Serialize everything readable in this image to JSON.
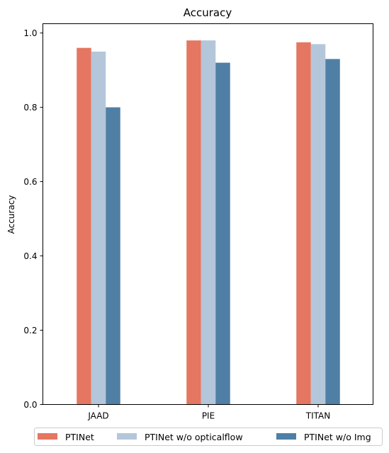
{
  "chart_data": {
    "type": "bar",
    "title": "Accuracy",
    "xlabel": "",
    "ylabel": "Accuracy",
    "categories": [
      "JAAD",
      "PIE",
      "TITAN"
    ],
    "series": [
      {
        "name": "PTINet",
        "values": [
          0.96,
          0.98,
          0.975
        ],
        "color": "#E57661"
      },
      {
        "name": "PTINet w/o opticalflow",
        "values": [
          0.95,
          0.98,
          0.97
        ],
        "color": "#B4C6DA"
      },
      {
        "name": "PTINet w/o Img",
        "values": [
          0.8,
          0.92,
          0.93
        ],
        "color": "#4F7FA5"
      }
    ],
    "ylim": [
      0,
      1.0
    ],
    "yticks": [
      "0.0",
      "0.2",
      "0.4",
      "0.6",
      "0.8",
      "1.0"
    ],
    "grid": false,
    "legend_position": "bottom-center"
  }
}
